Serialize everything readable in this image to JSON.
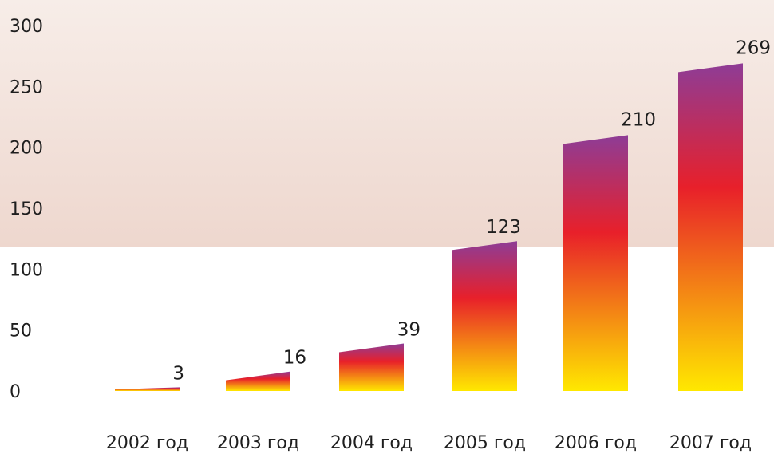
{
  "chart_data": {
    "type": "bar",
    "categories": [
      "2002 год",
      "2003 год",
      "2004 год",
      "2005 год",
      "2006 год",
      "2007 год"
    ],
    "values": [
      3,
      16,
      39,
      123,
      210,
      269
    ],
    "value_labels": [
      "3",
      "16",
      "39",
      "123",
      "210",
      "269"
    ],
    "yticks": [
      0,
      50,
      100,
      150,
      200,
      250,
      300
    ],
    "ytick_labels": [
      "0",
      "50",
      "100",
      "150",
      "200",
      "250",
      "300"
    ],
    "ylim": [
      0,
      300
    ],
    "grid": false,
    "legend": "none",
    "colors": {
      "bar_top": "#8e3c96",
      "bar_mid": "#e8202a",
      "bar_bottom": "#ffe800",
      "band_top": "#f7ede8",
      "band_bottom": "#eed7ce",
      "text": "#1e1e1e"
    }
  }
}
